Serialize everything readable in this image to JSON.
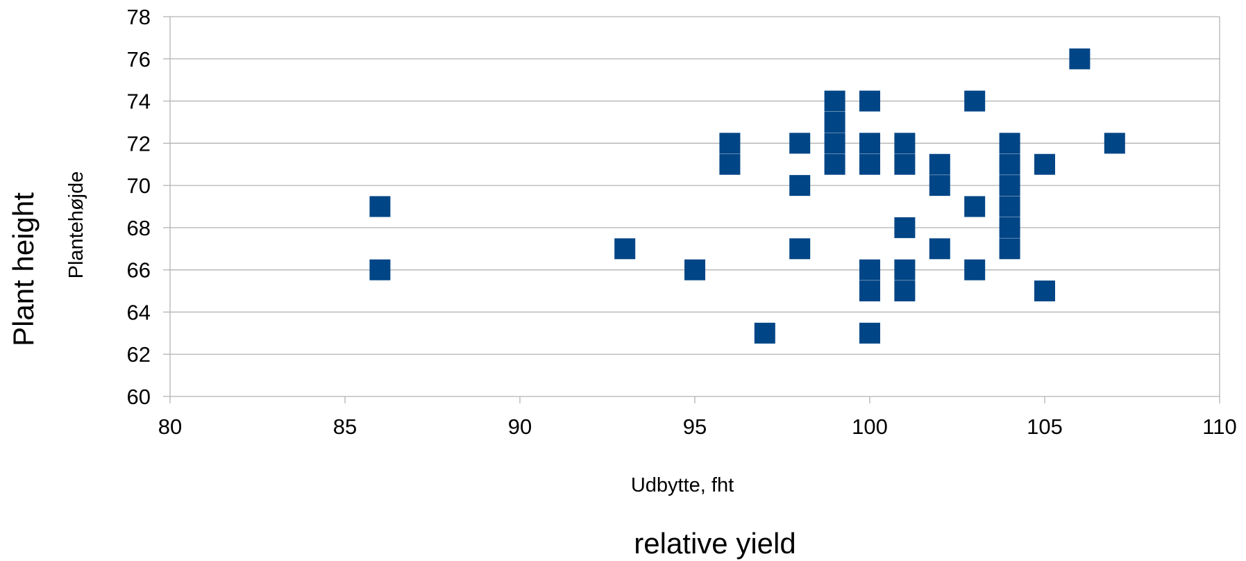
{
  "chart_data": {
    "type": "scatter",
    "xlabel": "Udbytte, fht",
    "xlabel_secondary": "relative yield",
    "ylabel": "Plantehøjde",
    "ylabel_secondary": "Plant height",
    "xlim": [
      80,
      110
    ],
    "ylim": [
      60,
      78
    ],
    "xticks": [
      80,
      85,
      90,
      95,
      100,
      105,
      110
    ],
    "yticks": [
      60,
      62,
      64,
      66,
      68,
      70,
      72,
      74,
      76,
      78
    ],
    "grid": "horizontal",
    "marker": "square",
    "color": "#004586",
    "points": [
      {
        "x": 86,
        "y": 69
      },
      {
        "x": 86,
        "y": 66
      },
      {
        "x": 93,
        "y": 67
      },
      {
        "x": 95,
        "y": 66
      },
      {
        "x": 96,
        "y": 72
      },
      {
        "x": 96,
        "y": 71
      },
      {
        "x": 97,
        "y": 63
      },
      {
        "x": 98,
        "y": 72
      },
      {
        "x": 98,
        "y": 70
      },
      {
        "x": 98,
        "y": 67
      },
      {
        "x": 99,
        "y": 74
      },
      {
        "x": 99,
        "y": 73
      },
      {
        "x": 99,
        "y": 72
      },
      {
        "x": 99,
        "y": 71
      },
      {
        "x": 100,
        "y": 74
      },
      {
        "x": 100,
        "y": 72
      },
      {
        "x": 100,
        "y": 71
      },
      {
        "x": 100,
        "y": 66
      },
      {
        "x": 100,
        "y": 65
      },
      {
        "x": 100,
        "y": 63
      },
      {
        "x": 101,
        "y": 72
      },
      {
        "x": 101,
        "y": 71
      },
      {
        "x": 101,
        "y": 68
      },
      {
        "x": 101,
        "y": 66
      },
      {
        "x": 101,
        "y": 65
      },
      {
        "x": 102,
        "y": 71
      },
      {
        "x": 102,
        "y": 70
      },
      {
        "x": 102,
        "y": 67
      },
      {
        "x": 103,
        "y": 74
      },
      {
        "x": 103,
        "y": 69
      },
      {
        "x": 103,
        "y": 66
      },
      {
        "x": 104,
        "y": 72
      },
      {
        "x": 104,
        "y": 71
      },
      {
        "x": 104,
        "y": 70
      },
      {
        "x": 104,
        "y": 69
      },
      {
        "x": 104,
        "y": 68
      },
      {
        "x": 104,
        "y": 67
      },
      {
        "x": 105,
        "y": 71
      },
      {
        "x": 105,
        "y": 65
      },
      {
        "x": 106,
        "y": 76
      },
      {
        "x": 107,
        "y": 72
      }
    ]
  }
}
